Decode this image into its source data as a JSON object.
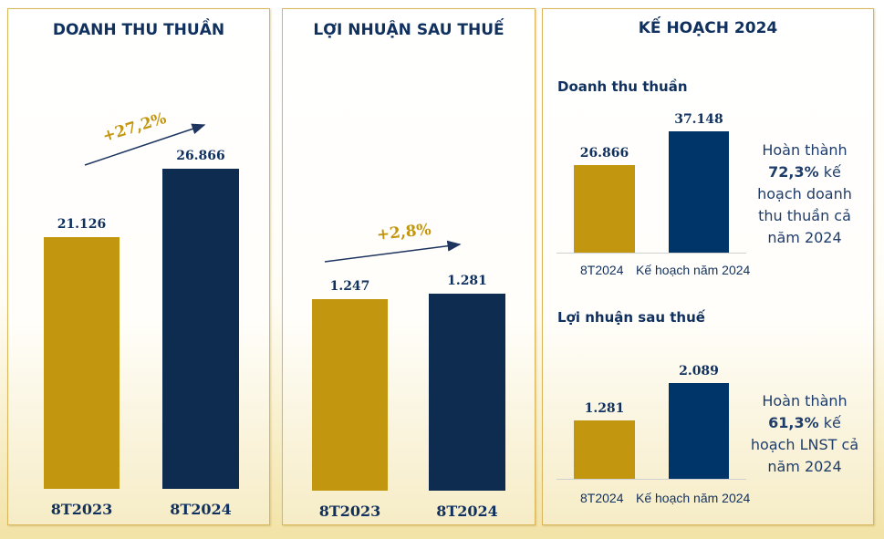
{
  "chart_data": [
    {
      "type": "bar",
      "title": "DOANH THU THUẦN",
      "categories": [
        "8T2023",
        "8T2024"
      ],
      "values": [
        21126,
        26866
      ],
      "value_labels": [
        "21.126",
        "26.866"
      ],
      "colors": [
        "#c2960f",
        "#0e2b50"
      ],
      "annotation": "+27,2%"
    },
    {
      "type": "bar",
      "title": "LỢI NHUẬN SAU THUẾ",
      "categories": [
        "8T2023",
        "8T2024"
      ],
      "values": [
        1247,
        1281
      ],
      "value_labels": [
        "1.247",
        "1.281"
      ],
      "colors": [
        "#c2960f",
        "#0e2b50"
      ],
      "annotation": "+2,8%"
    },
    {
      "type": "bar",
      "section": "KẾ HOẠCH 2024",
      "title": "Doanh thu thuần",
      "categories": [
        "8T2024",
        "Kế hoạch năm 2024"
      ],
      "values": [
        26866,
        37148
      ],
      "value_labels": [
        "26.866",
        "37.148"
      ],
      "colors": [
        "#c2960f",
        "#00356a"
      ],
      "note": {
        "prefix": "Hoàn thành",
        "pct": "72,3%",
        "suffix": "kế",
        "lines": [
          "hoạch doanh",
          "thu thuần cả",
          "năm 2024"
        ]
      }
    },
    {
      "type": "bar",
      "title": "Lợi nhuận sau thuế",
      "categories": [
        "8T2024",
        "Kế hoạch năm 2024"
      ],
      "values": [
        1281,
        2089
      ],
      "value_labels": [
        "1.281",
        "2.089"
      ],
      "colors": [
        "#c2960f",
        "#00356a"
      ],
      "note": {
        "prefix": "Hoàn thành",
        "pct": "61,3%",
        "suffix": "kế",
        "lines": [
          "hoạch LNST cả",
          "năm 2024"
        ]
      }
    }
  ],
  "plan_title": "KẾ HOẠCH 2024"
}
